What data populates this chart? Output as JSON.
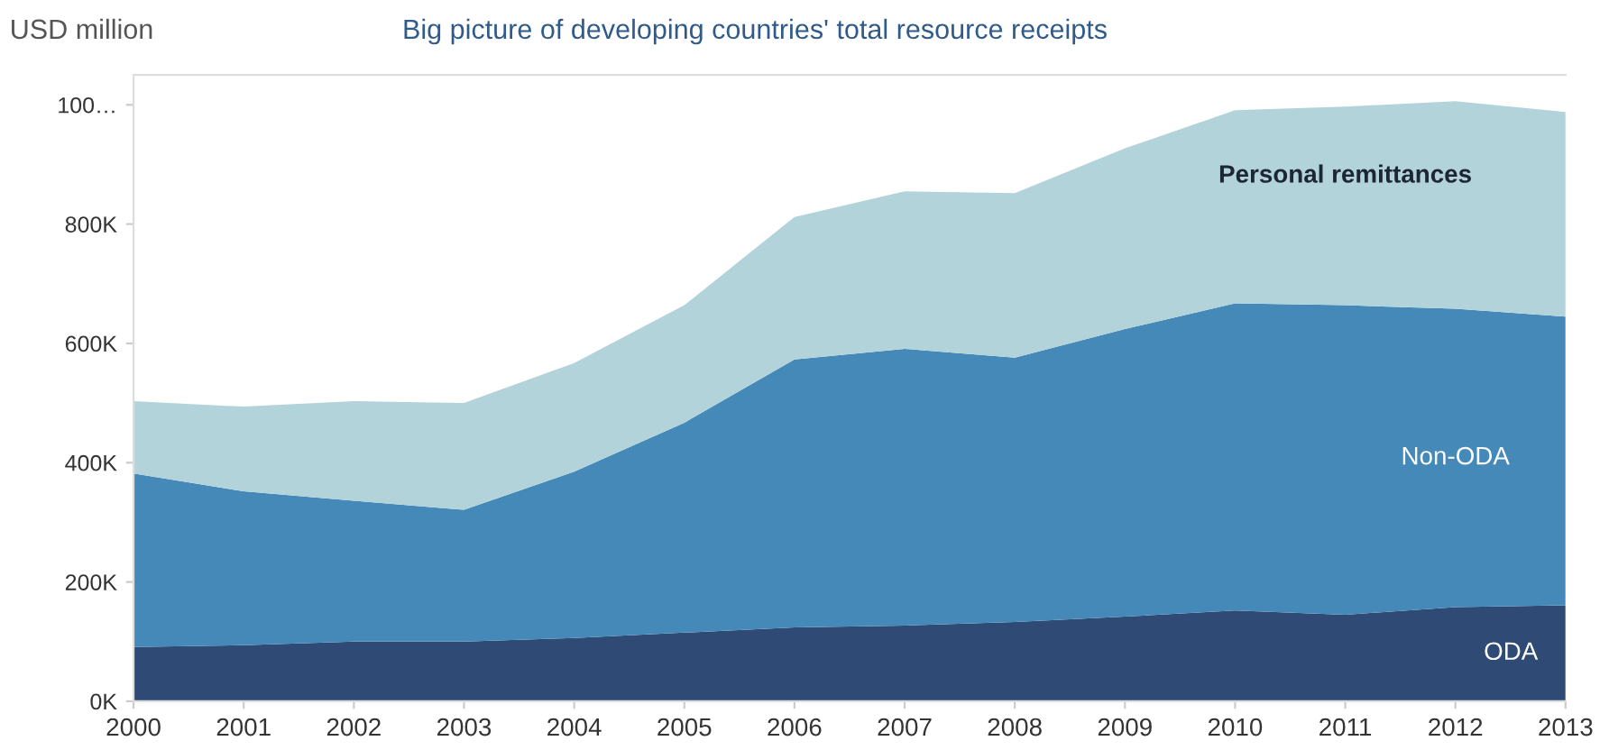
{
  "chart_data": {
    "type": "area",
    "stacked": true,
    "title": "Big picture of developing countries' total resource receipts",
    "ylabel": "USD million",
    "x": [
      2000,
      2001,
      2002,
      2003,
      2004,
      2005,
      2006,
      2007,
      2008,
      2009,
      2010,
      2011,
      2012,
      2013
    ],
    "series": [
      {
        "name": "ODA",
        "color": "#2e4a75",
        "values": [
          91000,
          94000,
          100000,
          100000,
          106000,
          115000,
          124000,
          127000,
          133000,
          142000,
          152000,
          145000,
          158000,
          161000
        ]
      },
      {
        "name": "Non-ODA",
        "color": "#4589b9",
        "values": [
          291000,
          258000,
          236000,
          221000,
          279000,
          352000,
          449000,
          464000,
          443000,
          482000,
          515000,
          519000,
          500000,
          484000
        ]
      },
      {
        "name": "Personal remittances",
        "color": "#b3d3db",
        "values": [
          121000,
          142000,
          167000,
          179000,
          182000,
          197000,
          239000,
          264000,
          276000,
          303000,
          324000,
          333000,
          348000,
          343000
        ]
      }
    ],
    "xlim": [
      2000,
      2013
    ],
    "xticks": [
      2000,
      2001,
      2002,
      2003,
      2004,
      2005,
      2006,
      2007,
      2008,
      2009,
      2010,
      2011,
      2012,
      2013
    ],
    "ylim": [
      0,
      1050000
    ],
    "yticks": [
      {
        "value": 0,
        "label": "0K"
      },
      {
        "value": 200000,
        "label": "200K"
      },
      {
        "value": 400000,
        "label": "400K"
      },
      {
        "value": 600000,
        "label": "600K"
      },
      {
        "value": 800000,
        "label": "800K"
      },
      {
        "value": 1000000,
        "label": "100…"
      }
    ],
    "grid": false,
    "legend": false
  }
}
